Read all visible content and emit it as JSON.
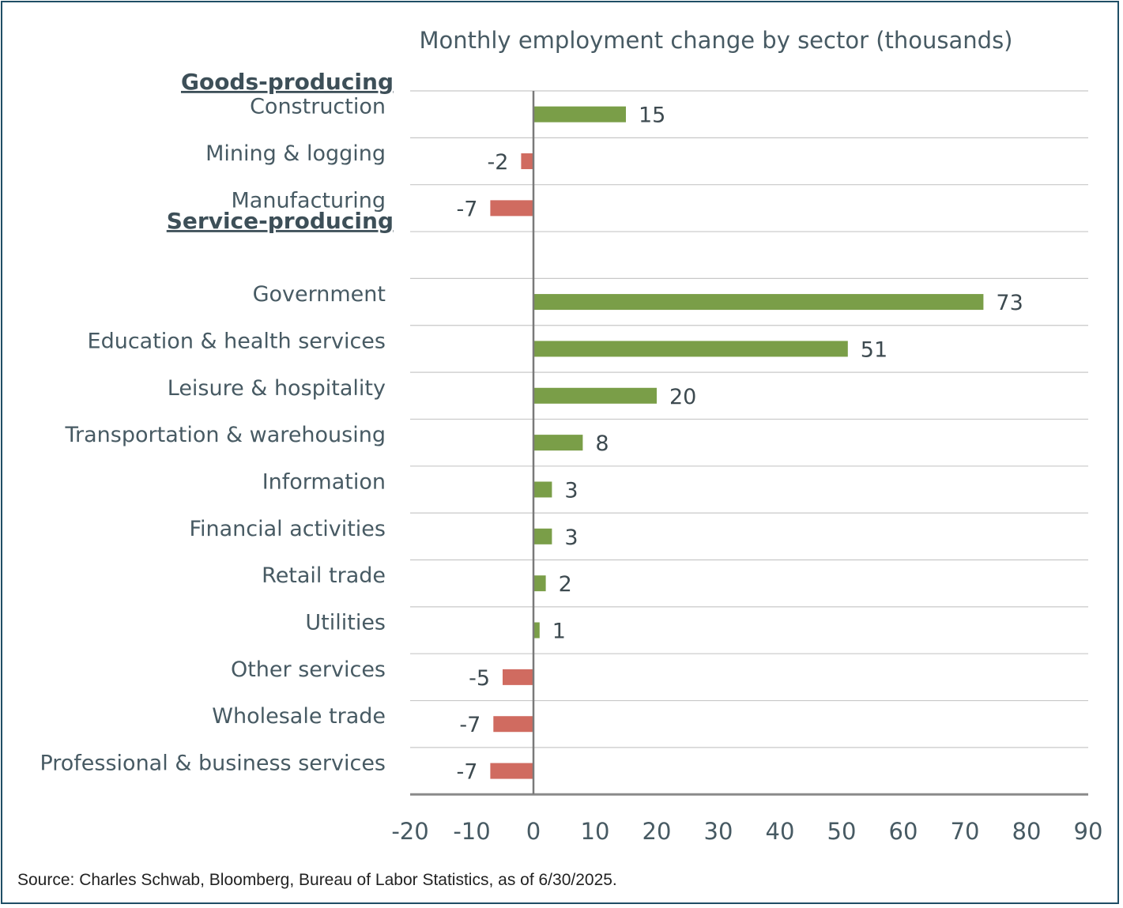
{
  "chart_data": {
    "type": "bar",
    "orientation": "horizontal",
    "title": "Monthly employment change by sector (thousands)",
    "groups": [
      {
        "label": "Goods-producing",
        "categories": [
          "Construction",
          "Mining & logging",
          "Manufacturing"
        ],
        "values": [
          15,
          -2,
          -7
        ],
        "value_labels": [
          "15",
          "-2",
          "-7"
        ]
      },
      {
        "label": "Service-producing",
        "categories": [
          "Government",
          "Education & health services",
          "Leisure & hospitality",
          "Transportation & warehousing",
          "Information",
          "Financial activities",
          "Retail trade",
          "Utilities",
          "Other services",
          "Wholesale trade",
          "Professional & business services"
        ],
        "values": [
          73,
          51,
          20,
          8,
          3,
          3,
          2,
          1,
          -5,
          -6.5,
          -7
        ],
        "value_labels": [
          "73",
          "51",
          "20",
          "8",
          "3",
          "3",
          "2",
          "1",
          "-5",
          "-7",
          "-7"
        ]
      }
    ],
    "xlim": [
      -20,
      90
    ],
    "xticks": [
      "-20",
      "-10",
      "0",
      "10",
      "20",
      "30",
      "40",
      "50",
      "60",
      "70",
      "80",
      "90"
    ],
    "grid": "horizontal",
    "colors": {
      "positive": "#7a9e48",
      "negative": "#d06b60"
    }
  },
  "source": "Source: Charles Schwab, Bloomberg, Bureau of Labor Statistics, as of 6/30/2025."
}
